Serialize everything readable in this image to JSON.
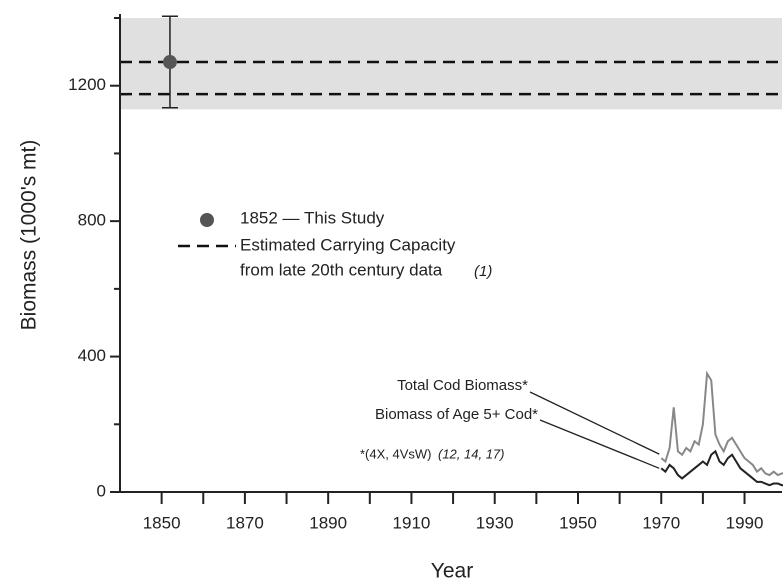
{
  "chart_data": {
    "type": "line",
    "xlabel": "Year",
    "ylabel": "Biomass (1000's mt)",
    "xlim": [
      1840,
      1999
    ],
    "ylim": [
      0,
      1400
    ],
    "xticks": [
      1850,
      1870,
      1890,
      1910,
      1930,
      1950,
      1970,
      1990
    ],
    "x_minor_ticks": [
      1860,
      1880,
      1900,
      1920,
      1940,
      1960,
      1980
    ],
    "yticks": [
      0,
      400,
      800,
      1200
    ],
    "y_minor_ticks": [
      200,
      600,
      1000,
      1400
    ],
    "x": [
      1970,
      1971,
      1972,
      1973,
      1974,
      1975,
      1976,
      1977,
      1978,
      1979,
      1980,
      1981,
      1982,
      1983,
      1984,
      1985,
      1986,
      1987,
      1988,
      1989,
      1990,
      1991,
      1992,
      1993,
      1994,
      1995,
      1996,
      1997,
      1998,
      1999,
      2000
    ],
    "series": [
      {
        "name": "Total Cod Biomass*",
        "color": "#888888",
        "values": [
          100,
          90,
          130,
          250,
          120,
          110,
          130,
          120,
          150,
          140,
          200,
          350,
          330,
          170,
          140,
          120,
          150,
          160,
          140,
          120,
          100,
          90,
          80,
          60,
          70,
          55,
          50,
          60,
          50,
          55,
          55
        ]
      },
      {
        "name": "Biomass of Age 5+ Cod*",
        "color": "#222222",
        "values": [
          70,
          60,
          80,
          70,
          50,
          40,
          50,
          60,
          70,
          80,
          90,
          80,
          110,
          120,
          90,
          80,
          100,
          110,
          90,
          70,
          60,
          50,
          40,
          30,
          30,
          25,
          20,
          25,
          25,
          20,
          20
        ]
      }
    ],
    "study_point": {
      "name": "1852 — This Study",
      "x": 1852,
      "value": 1270,
      "error": 135,
      "color": "#555555"
    },
    "carrying_capacity": {
      "name_lines": [
        "Estimated Carrying Capacity",
        "from late 20th century data"
      ],
      "ref": "(1)",
      "values": [
        1270,
        1175
      ]
    },
    "shaded_range": [
      1130,
      1400
    ],
    "footnote": "*(4X, 4VsW)",
    "footnote_refs": "(12, 14, 17)"
  }
}
